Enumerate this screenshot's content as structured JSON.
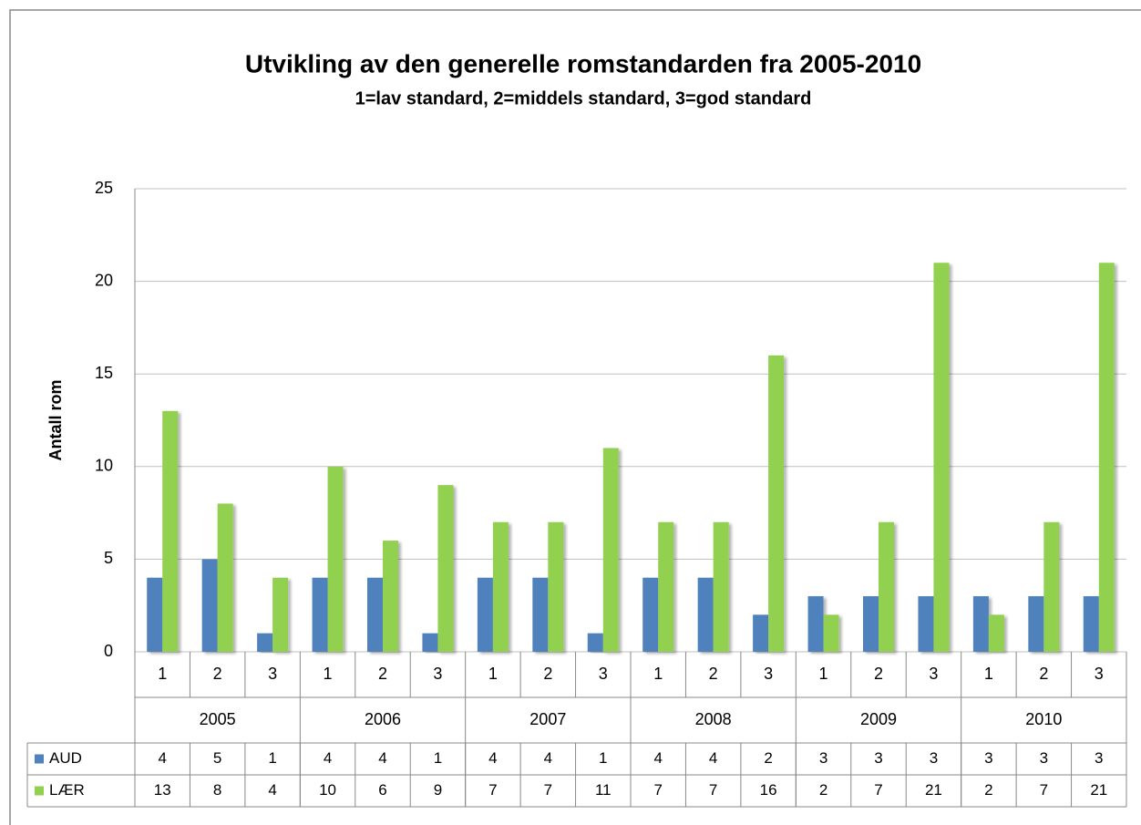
{
  "chart_data": {
    "type": "bar",
    "title": "Utvikling av den generelle romstandarden fra 2005-2010",
    "subtitle": "1=lav standard, 2=middels standard, 3=god standard",
    "y_label": "Antall rom",
    "categories": [
      "1",
      "2",
      "3",
      "1",
      "2",
      "3",
      "1",
      "2",
      "3",
      "1",
      "2",
      "3",
      "1",
      "2",
      "3",
      "1",
      "2",
      "3"
    ],
    "category_groups": [
      "2005",
      "2006",
      "2007",
      "2008",
      "2009",
      "2010"
    ],
    "series": [
      {
        "name": "AUD",
        "color": "#4f81bd",
        "values": [
          4,
          5,
          1,
          4,
          4,
          1,
          4,
          4,
          1,
          4,
          4,
          2,
          3,
          3,
          3,
          3,
          3,
          3
        ]
      },
      {
        "name": "LÆR",
        "color": "#92d050",
        "values": [
          13,
          8,
          4,
          10,
          6,
          9,
          7,
          7,
          11,
          7,
          7,
          16,
          2,
          7,
          21,
          2,
          7,
          21
        ]
      }
    ],
    "ylim": [
      0,
      25
    ],
    "yticks": [
      0,
      5,
      10,
      15,
      20,
      25
    ],
    "grid": true,
    "data_table": true
  }
}
